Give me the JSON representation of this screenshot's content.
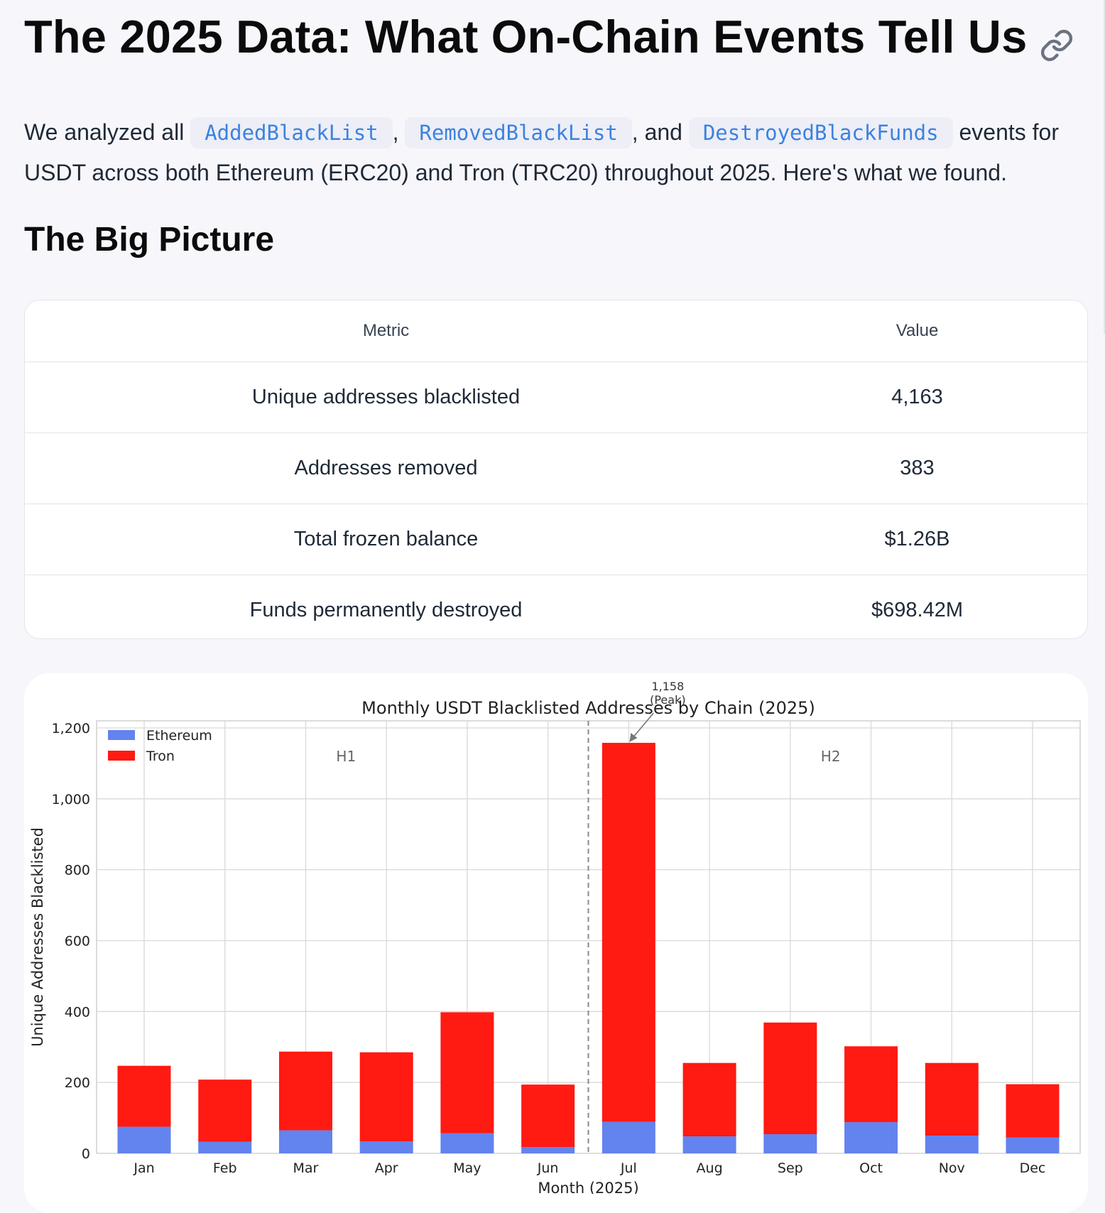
{
  "heading": "The 2025 Data: What On-Chain Events Tell Us",
  "intro": {
    "lead": "We analyzed all",
    "code1": "AddedBlackList",
    "sep1": ",",
    "code2": "RemovedBlackList",
    "sep2": ", and",
    "code3": "DestroyedBlackFunds",
    "tail": "events for USDT across both Ethereum (ERC20) and Tron (TRC20) throughout 2025. Here's what we found."
  },
  "section_title": "The Big Picture",
  "table": {
    "headers": [
      "Metric",
      "Value"
    ],
    "rows": [
      [
        "Unique addresses blacklisted",
        "4,163"
      ],
      [
        "Addresses removed",
        "383"
      ],
      [
        "Total frozen balance",
        "$1.26B"
      ],
      [
        "Funds permanently destroyed",
        "$698.42M"
      ]
    ]
  },
  "colors": {
    "ethereum": "#6383ee",
    "tron": "#ff1a12",
    "accent_code": "#3b82e0"
  },
  "icons": {
    "heading_link": "link-icon"
  },
  "chart_data": {
    "type": "bar",
    "stacked": true,
    "title": "Monthly USDT Blacklisted Addresses by Chain (2025)",
    "xlabel": "Month (2025)",
    "ylabel": "Unique Addresses Blacklisted",
    "ylim": [
      0,
      1200
    ],
    "yticks": [
      0,
      200,
      400,
      600,
      800,
      1000,
      1200
    ],
    "ytick_labels": [
      "0",
      "200",
      "400",
      "600",
      "800",
      "1,000",
      "1,200"
    ],
    "grid": true,
    "legend": "top-left",
    "categories": [
      "Jan",
      "Feb",
      "Mar",
      "Apr",
      "May",
      "Jun",
      "Jul",
      "Aug",
      "Sep",
      "Oct",
      "Nov",
      "Dec"
    ],
    "series": [
      {
        "name": "Ethereum",
        "color": "#6383ee",
        "values": [
          75,
          33,
          65,
          34,
          57,
          18,
          89,
          48,
          54,
          88,
          50,
          45
        ]
      },
      {
        "name": "Tron",
        "color": "#ff1a12",
        "values": [
          172,
          175,
          222,
          251,
          341,
          176,
          1069,
          207,
          315,
          214,
          205,
          150
        ]
      }
    ],
    "annotations": [
      {
        "text": "1,158",
        "text2": "(Peak)",
        "category": "Jul",
        "value": 1158
      },
      {
        "text": "H1",
        "region": "first-half"
      },
      {
        "text": "H2",
        "region": "second-half"
      }
    ],
    "divider": {
      "between": [
        "Jun",
        "Jul"
      ],
      "style": "dashed"
    }
  }
}
